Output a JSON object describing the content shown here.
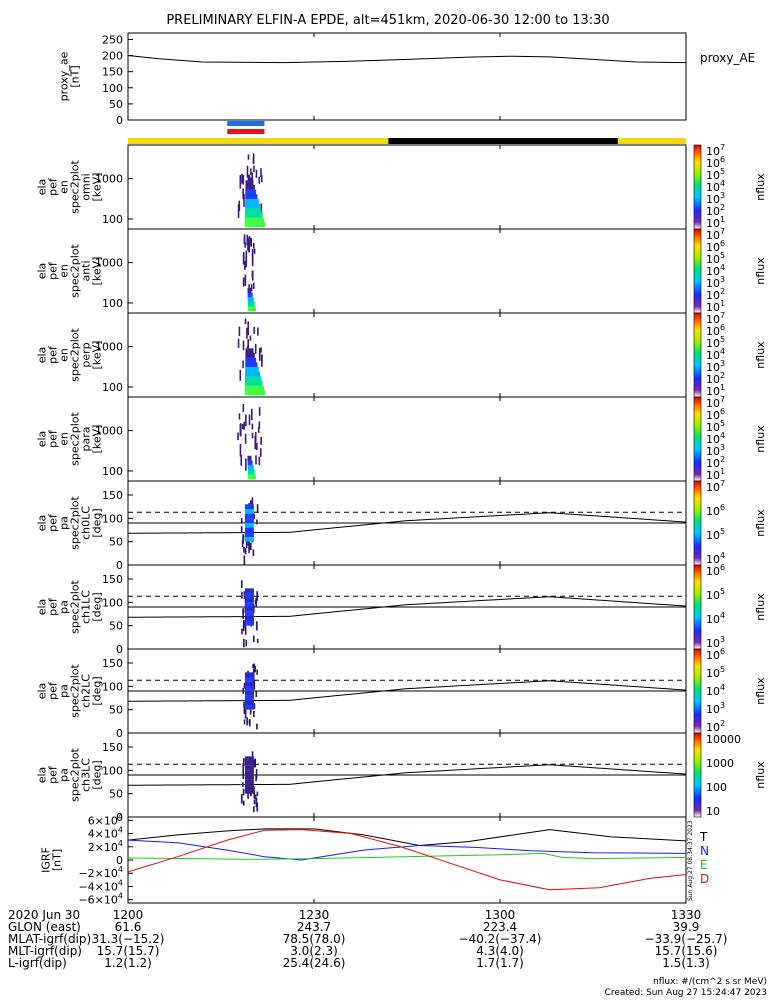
{
  "title": "PRELIMINARY ELFIN-A EPDE, alt=451km, 2020-06-30 12:00 to 13:30",
  "colors": {
    "yellow": "#f5d800",
    "black": "#000000",
    "blue": "#1e6fe0",
    "red": "#e8141c"
  },
  "chart_data": [
    {
      "type": "line",
      "panel": "proxy_ae",
      "ylabel": [
        "proxy_ae",
        "[nT]"
      ],
      "legend": "proxy_AE",
      "ylim": [
        0,
        270
      ],
      "yticks": [
        "250",
        "200",
        "150",
        "100",
        "50",
        "0"
      ],
      "ytick_values": [
        250,
        200,
        150,
        100,
        50,
        0
      ],
      "series": [
        {
          "name": "proxy_AE",
          "x": [
            0,
            5,
            12,
            25,
            35,
            45,
            55,
            62,
            68,
            75,
            82,
            90
          ],
          "y": [
            200,
            190,
            180,
            178,
            182,
            188,
            195,
            198,
            196,
            188,
            180,
            178
          ]
        }
      ]
    },
    {
      "type": "bar",
      "panel": "state-bars",
      "description_items": [
        "sci-zone-blue",
        "sci-zone-red",
        "sunlight-yellow",
        "shadow-black"
      ],
      "yellow_segments": [
        [
          0,
          42
        ],
        [
          79,
          90
        ]
      ],
      "black_segments": [
        [
          42,
          79
        ]
      ],
      "blue_segment": [
        16,
        22
      ],
      "red_segment": [
        16,
        22
      ]
    },
    {
      "type": "heatmap",
      "panel": "omni",
      "ylabel": [
        "ela",
        "pef",
        "en",
        "spec2plot",
        "omni",
        "[keV]"
      ],
      "yticks": [
        "1000",
        "100"
      ],
      "colorbar_ticks": [
        "10^7",
        "10^6",
        "10^5",
        "10^4",
        "10^3",
        "10^2",
        "10^1"
      ],
      "colorbar_label": "nflux",
      "x_range": [
        17.5,
        21.5
      ]
    },
    {
      "type": "heatmap",
      "panel": "anti",
      "ylabel": [
        "ela",
        "pef",
        "en",
        "spec2plot",
        "anti",
        "[keV]"
      ],
      "yticks": [
        "1000",
        "100"
      ],
      "colorbar_ticks": [
        "10^7",
        "10^6",
        "10^5",
        "10^4",
        "10^3",
        "10^2",
        "10^1"
      ],
      "colorbar_label": "nflux",
      "x_range": [
        18.5,
        20.5
      ]
    },
    {
      "type": "heatmap",
      "panel": "perp",
      "ylabel": [
        "ela",
        "pef",
        "en",
        "spec2plot",
        "perp",
        "[keV]"
      ],
      "yticks": [
        "1000",
        "100"
      ],
      "colorbar_ticks": [
        "10^7",
        "10^6",
        "10^5",
        "10^4",
        "10^3",
        "10^2",
        "10^1"
      ],
      "colorbar_label": "nflux",
      "x_range": [
        17.5,
        21.5
      ]
    },
    {
      "type": "heatmap",
      "panel": "para",
      "ylabel": [
        "ela",
        "pef",
        "en",
        "spec2plot",
        "para",
        "[keV]"
      ],
      "yticks": [
        "1000",
        "100"
      ],
      "colorbar_ticks": [
        "10^7",
        "10^6",
        "10^5",
        "10^4",
        "10^3",
        "10^2",
        "10^1"
      ],
      "colorbar_label": "nflux",
      "x_range": [
        17.5,
        21.5
      ]
    },
    {
      "type": "heatmap",
      "panel": "ch0LC",
      "ylabel": [
        "ela",
        "pef",
        "pa",
        "spec2plot",
        "ch0LC",
        "[deg]"
      ],
      "yticks": [
        "150",
        "100",
        "50",
        "0"
      ],
      "ytick_values": [
        150,
        100,
        50,
        0
      ],
      "ylim": [
        0,
        180
      ],
      "colorbar_ticks": [
        "10^7",
        "10^6",
        "10^5",
        "10^4"
      ],
      "colorbar_label": "nflux",
      "loss_cone": {
        "x": [
          0,
          26,
          45,
          68,
          90
        ],
        "y": [
          68,
          70,
          95,
          112,
          92
        ]
      },
      "anti_loss_cone": {
        "x": [
          0,
          26,
          45,
          68,
          90
        ],
        "y": [
          112,
          110,
          85,
          68,
          88
        ]
      },
      "dashed_level": 113,
      "solid_level": 90
    },
    {
      "type": "heatmap",
      "panel": "ch1LC",
      "ylabel": [
        "ela",
        "pef",
        "pa",
        "spec2plot",
        "ch1LC",
        "[deg]"
      ],
      "yticks": [
        "150",
        "100",
        "50",
        "0"
      ],
      "ytick_values": [
        150,
        100,
        50,
        0
      ],
      "ylim": [
        0,
        180
      ],
      "colorbar_ticks": [
        "10^6",
        "10^5",
        "10^4",
        "10^3"
      ],
      "colorbar_label": "nflux",
      "loss_cone": {
        "x": [
          0,
          26,
          45,
          68,
          90
        ],
        "y": [
          68,
          70,
          95,
          112,
          92
        ]
      },
      "dashed_level": 113,
      "solid_level": 90
    },
    {
      "type": "heatmap",
      "panel": "ch2LC",
      "ylabel": [
        "ela",
        "pef",
        "pa",
        "spec2plot",
        "ch2LC",
        "[deg]"
      ],
      "yticks": [
        "150",
        "100",
        "50",
        "0"
      ],
      "ytick_values": [
        150,
        100,
        50,
        0
      ],
      "ylim": [
        0,
        180
      ],
      "colorbar_ticks": [
        "10^6",
        "10^5",
        "10^4",
        "10^3",
        "10^2"
      ],
      "colorbar_label": "nflux",
      "loss_cone": {
        "x": [
          0,
          26,
          45,
          68,
          90
        ],
        "y": [
          68,
          70,
          95,
          112,
          92
        ]
      },
      "dashed_level": 113,
      "solid_level": 90
    },
    {
      "type": "heatmap",
      "panel": "ch3LC",
      "ylabel": [
        "ela",
        "pef",
        "pa",
        "spec2plot",
        "ch3LC",
        "[deg]"
      ],
      "yticks": [
        "150",
        "100",
        "50",
        "0"
      ],
      "ytick_values": [
        150,
        100,
        50,
        0
      ],
      "ylim": [
        0,
        180
      ],
      "colorbar_ticks": [
        "10000",
        "1000",
        "100",
        "10"
      ],
      "colorbar_label": "nflux",
      "loss_cone": {
        "x": [
          0,
          26,
          45,
          68,
          90
        ],
        "y": [
          68,
          70,
          95,
          112,
          92
        ]
      },
      "dashed_level": 113,
      "solid_level": 90
    },
    {
      "type": "line",
      "panel": "IGRF",
      "ylabel": [
        "IGRF",
        "[nT]"
      ],
      "ylim": [
        -65000,
        65000
      ],
      "yticks": [
        "6×10^4",
        "4×10^4",
        "2×10^4",
        "0",
        "−2×10^4",
        "−4×10^4",
        "−6×10^4"
      ],
      "ytick_values": [
        60000,
        40000,
        20000,
        0,
        -20000,
        -40000,
        -60000
      ],
      "series": [
        {
          "name": "T",
          "color": "#000000",
          "x": [
            0,
            8,
            16,
            22,
            30,
            38,
            47,
            55,
            68,
            78,
            90
          ],
          "y": [
            30000,
            38000,
            44000,
            47000,
            47000,
            38000,
            22000,
            28000,
            46000,
            35000,
            29000
          ]
        },
        {
          "name": "N",
          "color": "#1a1aff",
          "x": [
            0,
            8,
            16,
            22,
            28,
            38,
            47,
            56,
            65,
            75,
            90
          ],
          "y": [
            30000,
            26000,
            15000,
            5000,
            0,
            15000,
            22000,
            19000,
            14000,
            11000,
            10000
          ]
        },
        {
          "name": "E",
          "color": "#22cc22",
          "x": [
            0,
            10,
            20,
            30,
            40,
            50,
            60,
            67,
            70,
            75,
            90
          ],
          "y": [
            3000,
            2000,
            1000,
            2000,
            4000,
            6000,
            8000,
            10000,
            4000,
            2000,
            4000
          ]
        },
        {
          "name": "D",
          "color": "#e01010",
          "x": [
            0,
            8,
            16,
            22,
            28,
            36,
            44,
            52,
            60,
            68,
            76,
            84,
            90
          ],
          "y": [
            -18000,
            5000,
            30000,
            45000,
            46000,
            40000,
            20000,
            -5000,
            -30000,
            -45000,
            -42000,
            -28000,
            -22000
          ]
        }
      ],
      "annotation": "Sun Aug 27 08:34:37 2023"
    }
  ],
  "xaxis": {
    "range_minutes": [
      0,
      90
    ],
    "ticks": [
      {
        "min": 0,
        "label": "1200"
      },
      {
        "min": 30,
        "label": "1230"
      },
      {
        "min": 60,
        "label": "1300"
      },
      {
        "min": 90,
        "label": "1330"
      }
    ],
    "date_label": "2020 Jun 30"
  },
  "ephemeris": [
    {
      "label": "GLON (east)",
      "values": [
        "61.6",
        "243.7",
        "223.4",
        "39.9"
      ]
    },
    {
      "label": "MLAT-igrf(dip)",
      "values": [
        "31.3(−15.2)",
        "78.5(78.0)",
        "−40.2(−37.4)",
        "−33.9(−25.7)"
      ]
    },
    {
      "label": "MLT-igrf(dip)",
      "values": [
        "15.7(15.7)",
        "3.0(2.3)",
        "4.3(4.0)",
        "15.7(15.6)"
      ]
    },
    {
      "label": "L-igrf(dip)",
      "values": [
        "1.2(1.2)",
        "25.4(24.6)",
        "1.7(1.7)",
        "1.5(1.3)"
      ]
    }
  ],
  "footer": {
    "units": "nflux: #/(cm^2 s sr MeV)",
    "created": "Created: Sun Aug 27 15:24:47 2023"
  }
}
